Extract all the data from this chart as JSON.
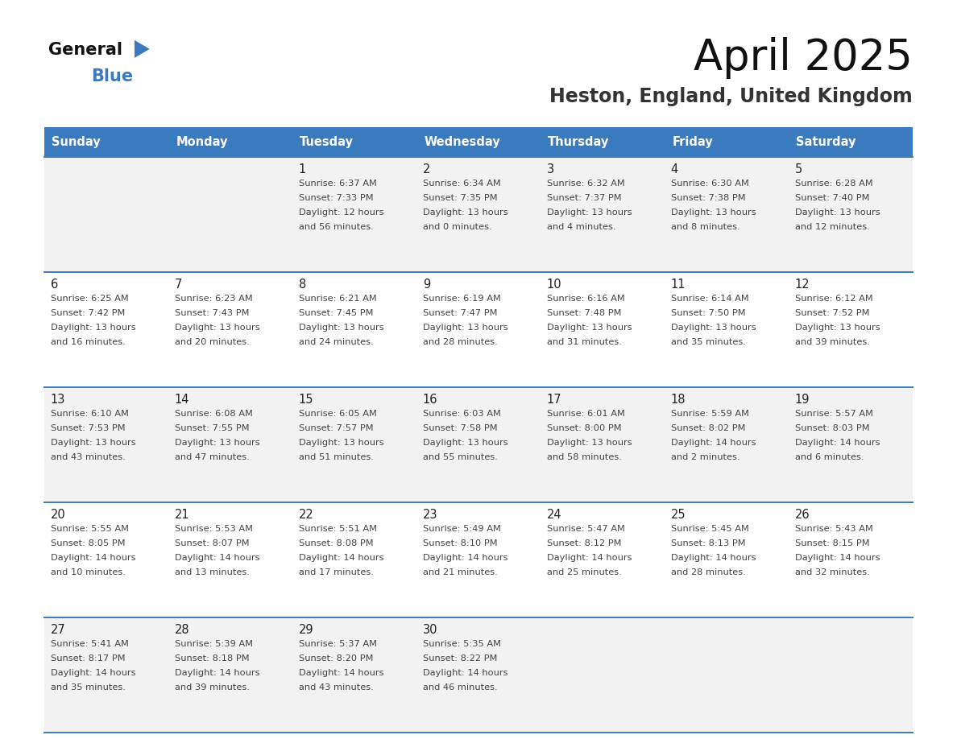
{
  "title": "April 2025",
  "subtitle": "Heston, England, United Kingdom",
  "header_bg": "#3a7abf",
  "header_text": "#ffffff",
  "day_names": [
    "Sunday",
    "Monday",
    "Tuesday",
    "Wednesday",
    "Thursday",
    "Friday",
    "Saturday"
  ],
  "row_bg": [
    "#f2f2f2",
    "#ffffff"
  ],
  "line_color": "#3a7abf",
  "day_num_color": "#222222",
  "cell_text_color": "#444444",
  "title_color": "#111111",
  "subtitle_color": "#333333",
  "logo_general_color": "#111111",
  "logo_blue_color": "#3a7abf",
  "weeks": [
    [
      {
        "day": "",
        "sunrise": "",
        "sunset": "",
        "daylight": ""
      },
      {
        "day": "",
        "sunrise": "",
        "sunset": "",
        "daylight": ""
      },
      {
        "day": "1",
        "sunrise": "Sunrise: 6:37 AM",
        "sunset": "Sunset: 7:33 PM",
        "daylight": "Daylight: 12 hours\nand 56 minutes."
      },
      {
        "day": "2",
        "sunrise": "Sunrise: 6:34 AM",
        "sunset": "Sunset: 7:35 PM",
        "daylight": "Daylight: 13 hours\nand 0 minutes."
      },
      {
        "day": "3",
        "sunrise": "Sunrise: 6:32 AM",
        "sunset": "Sunset: 7:37 PM",
        "daylight": "Daylight: 13 hours\nand 4 minutes."
      },
      {
        "day": "4",
        "sunrise": "Sunrise: 6:30 AM",
        "sunset": "Sunset: 7:38 PM",
        "daylight": "Daylight: 13 hours\nand 8 minutes."
      },
      {
        "day": "5",
        "sunrise": "Sunrise: 6:28 AM",
        "sunset": "Sunset: 7:40 PM",
        "daylight": "Daylight: 13 hours\nand 12 minutes."
      }
    ],
    [
      {
        "day": "6",
        "sunrise": "Sunrise: 6:25 AM",
        "sunset": "Sunset: 7:42 PM",
        "daylight": "Daylight: 13 hours\nand 16 minutes."
      },
      {
        "day": "7",
        "sunrise": "Sunrise: 6:23 AM",
        "sunset": "Sunset: 7:43 PM",
        "daylight": "Daylight: 13 hours\nand 20 minutes."
      },
      {
        "day": "8",
        "sunrise": "Sunrise: 6:21 AM",
        "sunset": "Sunset: 7:45 PM",
        "daylight": "Daylight: 13 hours\nand 24 minutes."
      },
      {
        "day": "9",
        "sunrise": "Sunrise: 6:19 AM",
        "sunset": "Sunset: 7:47 PM",
        "daylight": "Daylight: 13 hours\nand 28 minutes."
      },
      {
        "day": "10",
        "sunrise": "Sunrise: 6:16 AM",
        "sunset": "Sunset: 7:48 PM",
        "daylight": "Daylight: 13 hours\nand 31 minutes."
      },
      {
        "day": "11",
        "sunrise": "Sunrise: 6:14 AM",
        "sunset": "Sunset: 7:50 PM",
        "daylight": "Daylight: 13 hours\nand 35 minutes."
      },
      {
        "day": "12",
        "sunrise": "Sunrise: 6:12 AM",
        "sunset": "Sunset: 7:52 PM",
        "daylight": "Daylight: 13 hours\nand 39 minutes."
      }
    ],
    [
      {
        "day": "13",
        "sunrise": "Sunrise: 6:10 AM",
        "sunset": "Sunset: 7:53 PM",
        "daylight": "Daylight: 13 hours\nand 43 minutes."
      },
      {
        "day": "14",
        "sunrise": "Sunrise: 6:08 AM",
        "sunset": "Sunset: 7:55 PM",
        "daylight": "Daylight: 13 hours\nand 47 minutes."
      },
      {
        "day": "15",
        "sunrise": "Sunrise: 6:05 AM",
        "sunset": "Sunset: 7:57 PM",
        "daylight": "Daylight: 13 hours\nand 51 minutes."
      },
      {
        "day": "16",
        "sunrise": "Sunrise: 6:03 AM",
        "sunset": "Sunset: 7:58 PM",
        "daylight": "Daylight: 13 hours\nand 55 minutes."
      },
      {
        "day": "17",
        "sunrise": "Sunrise: 6:01 AM",
        "sunset": "Sunset: 8:00 PM",
        "daylight": "Daylight: 13 hours\nand 58 minutes."
      },
      {
        "day": "18",
        "sunrise": "Sunrise: 5:59 AM",
        "sunset": "Sunset: 8:02 PM",
        "daylight": "Daylight: 14 hours\nand 2 minutes."
      },
      {
        "day": "19",
        "sunrise": "Sunrise: 5:57 AM",
        "sunset": "Sunset: 8:03 PM",
        "daylight": "Daylight: 14 hours\nand 6 minutes."
      }
    ],
    [
      {
        "day": "20",
        "sunrise": "Sunrise: 5:55 AM",
        "sunset": "Sunset: 8:05 PM",
        "daylight": "Daylight: 14 hours\nand 10 minutes."
      },
      {
        "day": "21",
        "sunrise": "Sunrise: 5:53 AM",
        "sunset": "Sunset: 8:07 PM",
        "daylight": "Daylight: 14 hours\nand 13 minutes."
      },
      {
        "day": "22",
        "sunrise": "Sunrise: 5:51 AM",
        "sunset": "Sunset: 8:08 PM",
        "daylight": "Daylight: 14 hours\nand 17 minutes."
      },
      {
        "day": "23",
        "sunrise": "Sunrise: 5:49 AM",
        "sunset": "Sunset: 8:10 PM",
        "daylight": "Daylight: 14 hours\nand 21 minutes."
      },
      {
        "day": "24",
        "sunrise": "Sunrise: 5:47 AM",
        "sunset": "Sunset: 8:12 PM",
        "daylight": "Daylight: 14 hours\nand 25 minutes."
      },
      {
        "day": "25",
        "sunrise": "Sunrise: 5:45 AM",
        "sunset": "Sunset: 8:13 PM",
        "daylight": "Daylight: 14 hours\nand 28 minutes."
      },
      {
        "day": "26",
        "sunrise": "Sunrise: 5:43 AM",
        "sunset": "Sunset: 8:15 PM",
        "daylight": "Daylight: 14 hours\nand 32 minutes."
      }
    ],
    [
      {
        "day": "27",
        "sunrise": "Sunrise: 5:41 AM",
        "sunset": "Sunset: 8:17 PM",
        "daylight": "Daylight: 14 hours\nand 35 minutes."
      },
      {
        "day": "28",
        "sunrise": "Sunrise: 5:39 AM",
        "sunset": "Sunset: 8:18 PM",
        "daylight": "Daylight: 14 hours\nand 39 minutes."
      },
      {
        "day": "29",
        "sunrise": "Sunrise: 5:37 AM",
        "sunset": "Sunset: 8:20 PM",
        "daylight": "Daylight: 14 hours\nand 43 minutes."
      },
      {
        "day": "30",
        "sunrise": "Sunrise: 5:35 AM",
        "sunset": "Sunset: 8:22 PM",
        "daylight": "Daylight: 14 hours\nand 46 minutes."
      },
      {
        "day": "",
        "sunrise": "",
        "sunset": "",
        "daylight": ""
      },
      {
        "day": "",
        "sunrise": "",
        "sunset": "",
        "daylight": ""
      },
      {
        "day": "",
        "sunrise": "",
        "sunset": "",
        "daylight": ""
      }
    ]
  ]
}
